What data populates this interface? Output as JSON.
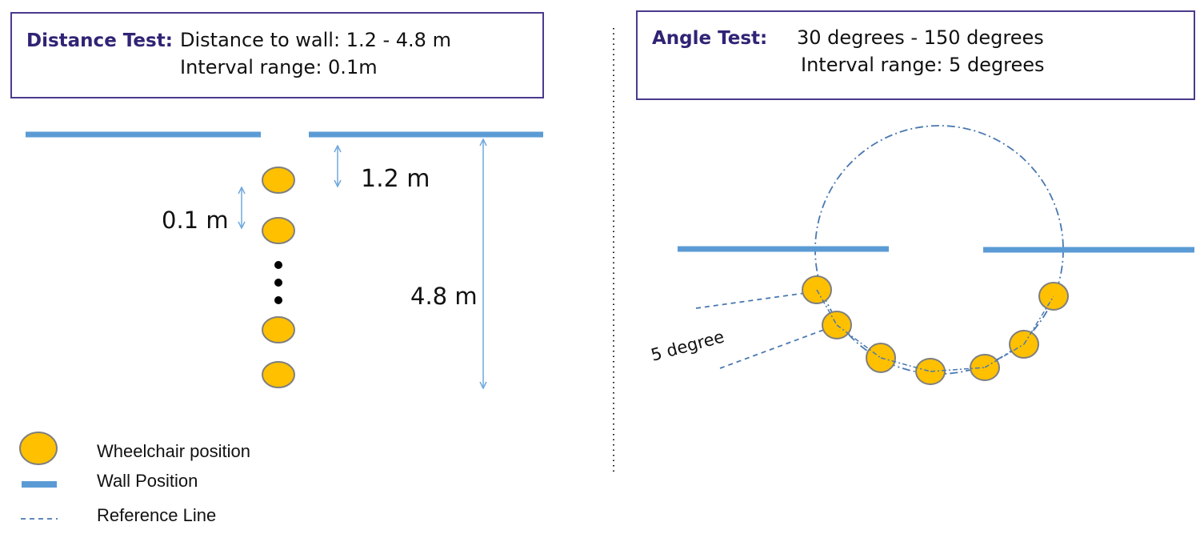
{
  "distance_test": {
    "title": "Distance Test:",
    "line1": "Distance to wall: 1.2 - 4.8 m",
    "line2": "Interval range: 0.1m",
    "label_near": "1.2 m",
    "label_far": "4.8 m",
    "label_interval": "0.1 m"
  },
  "angle_test": {
    "title": "Angle Test:",
    "line1": "30 degrees  - 150 degrees",
    "line2": "Interval range: 5 degrees",
    "label_step": "5 degree"
  },
  "legend": {
    "wheelchair": "Wheelchair position",
    "wall": "Wall Position",
    "reference": "Reference Line"
  },
  "colors": {
    "wall": "#5b9bd5",
    "wheelchair_fill": "#ffc000",
    "wheelchair_stroke": "#7f7f7f",
    "reference": "#4a78b0",
    "box_border": "#4b3a8c",
    "title": "#2f2475"
  }
}
